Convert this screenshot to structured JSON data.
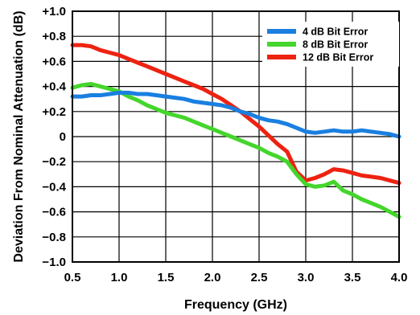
{
  "chart_data": {
    "type": "line",
    "xlabel": "Frequency (GHz)",
    "ylabel": "Deviation From Nominal Attenuation (dB)",
    "xlim": [
      0.5,
      4.0
    ],
    "ylim": [
      -1.0,
      1.0
    ],
    "x_ticks": [
      0.5,
      1.0,
      1.5,
      2.0,
      2.5,
      3.0,
      3.5,
      4.0
    ],
    "x_tick_labels": [
      "0.5",
      "1.0",
      "1.5",
      "2.0",
      "2.5",
      "3.0",
      "3.5",
      "4.0"
    ],
    "y_ticks": [
      1.0,
      0.8,
      0.6,
      0.4,
      0.2,
      0,
      -0.2,
      -0.4,
      -0.6,
      -0.8,
      -1.0
    ],
    "y_tick_labels": [
      "+1.0",
      "+0.8",
      "+0.6",
      "+0.4",
      "+0.2",
      "0",
      "−0.2",
      "−0.4",
      "−0.6",
      "−0.8",
      "−1.0"
    ],
    "grid": true,
    "legend_position": "top-right",
    "series": [
      {
        "name": "4 dB Bit Error",
        "color": "#1a7fe0",
        "x": [
          0.5,
          0.6,
          0.7,
          0.8,
          0.9,
          1.0,
          1.1,
          1.2,
          1.3,
          1.4,
          1.5,
          1.6,
          1.7,
          1.8,
          1.9,
          2.0,
          2.1,
          2.2,
          2.3,
          2.4,
          2.5,
          2.6,
          2.7,
          2.8,
          2.9,
          3.0,
          3.1,
          3.2,
          3.3,
          3.4,
          3.5,
          3.6,
          3.7,
          3.8,
          3.9,
          4.0
        ],
        "y": [
          0.32,
          0.32,
          0.33,
          0.33,
          0.34,
          0.35,
          0.35,
          0.34,
          0.34,
          0.33,
          0.32,
          0.31,
          0.3,
          0.28,
          0.27,
          0.26,
          0.25,
          0.23,
          0.2,
          0.18,
          0.15,
          0.13,
          0.12,
          0.1,
          0.07,
          0.04,
          0.03,
          0.04,
          0.05,
          0.04,
          0.04,
          0.05,
          0.04,
          0.03,
          0.02,
          0.0
        ]
      },
      {
        "name": "8 dB Bit Error",
        "color": "#44d62c",
        "x": [
          0.5,
          0.6,
          0.7,
          0.8,
          0.9,
          1.0,
          1.1,
          1.2,
          1.3,
          1.4,
          1.5,
          1.6,
          1.7,
          1.8,
          1.9,
          2.0,
          2.1,
          2.2,
          2.3,
          2.4,
          2.5,
          2.6,
          2.7,
          2.8,
          2.9,
          3.0,
          3.1,
          3.2,
          3.3,
          3.4,
          3.5,
          3.6,
          3.7,
          3.8,
          3.9,
          4.0
        ],
        "y": [
          0.39,
          0.41,
          0.42,
          0.4,
          0.38,
          0.36,
          0.32,
          0.29,
          0.25,
          0.22,
          0.19,
          0.17,
          0.15,
          0.12,
          0.09,
          0.06,
          0.03,
          0.0,
          -0.03,
          -0.06,
          -0.09,
          -0.13,
          -0.16,
          -0.2,
          -0.3,
          -0.38,
          -0.4,
          -0.39,
          -0.36,
          -0.43,
          -0.46,
          -0.5,
          -0.53,
          -0.56,
          -0.6,
          -0.64
        ]
      },
      {
        "name": "12 dB Bit Error",
        "color": "#ee2211",
        "x": [
          0.5,
          0.6,
          0.7,
          0.8,
          0.9,
          1.0,
          1.1,
          1.2,
          1.3,
          1.4,
          1.5,
          1.6,
          1.7,
          1.8,
          1.9,
          2.0,
          2.1,
          2.2,
          2.3,
          2.4,
          2.5,
          2.6,
          2.7,
          2.8,
          2.9,
          3.0,
          3.1,
          3.2,
          3.3,
          3.4,
          3.5,
          3.6,
          3.7,
          3.8,
          3.9,
          4.0
        ],
        "y": [
          0.73,
          0.73,
          0.72,
          0.69,
          0.67,
          0.65,
          0.62,
          0.59,
          0.56,
          0.53,
          0.5,
          0.47,
          0.44,
          0.41,
          0.38,
          0.34,
          0.3,
          0.25,
          0.2,
          0.14,
          0.08,
          0.01,
          -0.06,
          -0.12,
          -0.28,
          -0.35,
          -0.33,
          -0.3,
          -0.26,
          -0.27,
          -0.29,
          -0.31,
          -0.32,
          -0.33,
          -0.35,
          -0.37
        ]
      }
    ]
  }
}
